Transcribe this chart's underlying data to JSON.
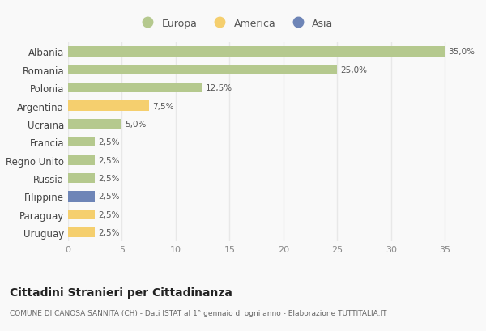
{
  "countries": [
    "Albania",
    "Romania",
    "Polonia",
    "Argentina",
    "Ucraina",
    "Francia",
    "Regno Unito",
    "Russia",
    "Filippine",
    "Paraguay",
    "Uruguay"
  ],
  "values": [
    35.0,
    25.0,
    12.5,
    7.5,
    5.0,
    2.5,
    2.5,
    2.5,
    2.5,
    2.5,
    2.5
  ],
  "labels": [
    "35,0%",
    "25,0%",
    "12,5%",
    "7,5%",
    "5,0%",
    "2,5%",
    "2,5%",
    "2,5%",
    "2,5%",
    "2,5%",
    "2,5%"
  ],
  "continents": [
    "Europa",
    "Europa",
    "Europa",
    "America",
    "Europa",
    "Europa",
    "Europa",
    "Europa",
    "Asia",
    "America",
    "America"
  ],
  "colors": {
    "Europa": "#b5c98e",
    "America": "#f5cf6e",
    "Asia": "#6e85b7"
  },
  "title": "Cittadini Stranieri per Cittadinanza",
  "subtitle": "COMUNE DI CANOSA SANNITA (CH) - Dati ISTAT al 1° gennaio di ogni anno - Elaborazione TUTTITALIA.IT",
  "xlim": [
    0,
    37
  ],
  "xticks": [
    0,
    5,
    10,
    15,
    20,
    25,
    30,
    35
  ],
  "background_color": "#f9f9f9",
  "grid_color": "#e8e8e8",
  "bar_height": 0.55
}
